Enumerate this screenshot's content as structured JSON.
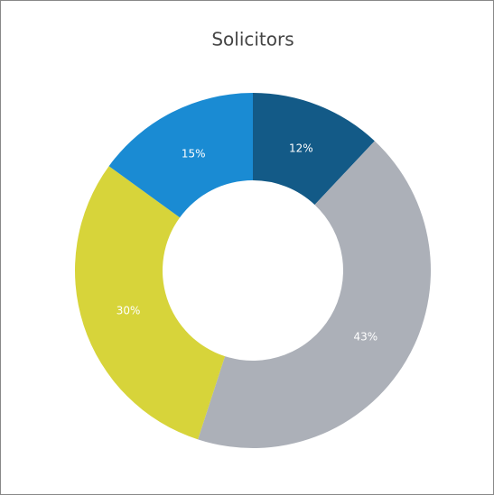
{
  "chart_data": {
    "type": "donut",
    "title": "Solicitors",
    "values": [
      12,
      43,
      30,
      15
    ],
    "value_labels": [
      "12%",
      "43%",
      "30%",
      "15%"
    ],
    "colors": [
      "#135a87",
      "#acb0b8",
      "#d7d43a",
      "#1a8bd3"
    ]
  }
}
